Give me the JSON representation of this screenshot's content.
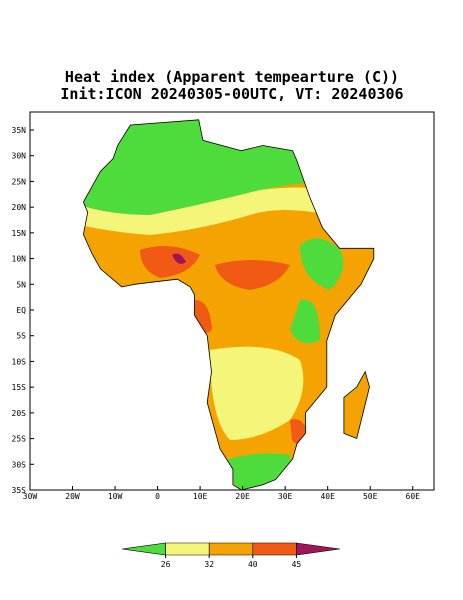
{
  "title": "Heat index (Apparent tempearture (C))",
  "subtitle": "Init:ICON 20240305-00UTC, VT: 20240306",
  "lon_range": [
    -30,
    65
  ],
  "lat_range": [
    -35,
    38.5
  ],
  "lon_ticks": [
    {
      "value": -30,
      "label": "30W"
    },
    {
      "value": -20,
      "label": "20W"
    },
    {
      "value": -10,
      "label": "10W"
    },
    0,
    {
      "value": 10,
      "label": "10E"
    },
    {
      "value": 20,
      "label": "20E"
    },
    {
      "value": 30,
      "label": "30E"
    },
    {
      "value": 40,
      "label": "40E"
    },
    {
      "value": 50,
      "label": "50E"
    },
    {
      "value": 60,
      "label": "60E"
    }
  ],
  "lat_ticks": [
    {
      "value": 35,
      "label": "35N"
    },
    {
      "value": 30,
      "label": "30N"
    },
    {
      "value": 25,
      "label": "25N"
    },
    {
      "value": 20,
      "label": "20N"
    },
    {
      "value": 15,
      "label": "15N"
    },
    {
      "value": 10,
      "label": "10N"
    },
    {
      "value": 5,
      "label": "5N"
    },
    {
      "value": 0,
      "label": "EQ"
    },
    {
      "value": -5,
      "label": "5S"
    },
    {
      "value": -10,
      "label": "10S"
    },
    {
      "value": -15,
      "label": "15S"
    },
    {
      "value": -20,
      "label": "20S"
    },
    {
      "value": -25,
      "label": "25S"
    },
    {
      "value": -30,
      "label": "30S"
    },
    {
      "value": -35,
      "label": "35S"
    }
  ],
  "colorbar": {
    "ticks": [
      26,
      32,
      40,
      45
    ],
    "colors": [
      "#4ddc3c",
      "#f5f57a",
      "#f5a300",
      "#f05a14",
      "#a0145a"
    ]
  }
}
